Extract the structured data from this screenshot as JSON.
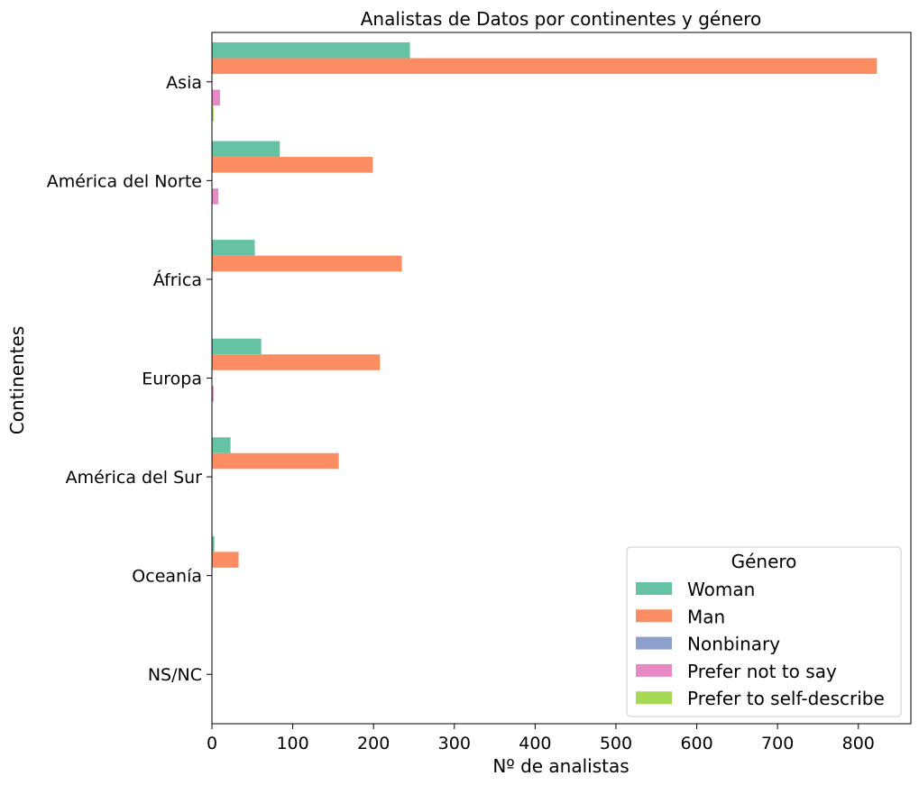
{
  "chart_data": {
    "type": "bar",
    "orientation": "horizontal",
    "title": "Analistas de Datos por continentes y género",
    "xlabel": "Nº de analistas",
    "ylabel": "Continentes",
    "categories": [
      "Asia",
      "América del Norte",
      "África",
      "Europa",
      "América del Sur",
      "Oceanía",
      "NS/NC"
    ],
    "xlim": [
      0,
      865
    ],
    "xticks": [
      0,
      100,
      200,
      300,
      400,
      500,
      600,
      700,
      800
    ],
    "grid": false,
    "legend": {
      "title": "Género",
      "placement": "lower-right"
    },
    "series": [
      {
        "name": "Woman",
        "color": "#66c2a5",
        "values": [
          245,
          84,
          53,
          61,
          23,
          3,
          0
        ]
      },
      {
        "name": "Man",
        "color": "#fc8d62",
        "values": [
          823,
          199,
          235,
          208,
          157,
          33,
          0
        ]
      },
      {
        "name": "Nonbinary",
        "color": "#8da0cb",
        "values": [
          0,
          0,
          0,
          0,
          0,
          0,
          0
        ]
      },
      {
        "name": "Prefer not to say",
        "color": "#e78ac3",
        "values": [
          10,
          8,
          0,
          2,
          0,
          0,
          0
        ]
      },
      {
        "name": "Prefer to self-describe",
        "color": "#a6d854",
        "values": [
          2,
          0,
          0,
          0,
          0,
          0,
          0
        ]
      }
    ]
  }
}
